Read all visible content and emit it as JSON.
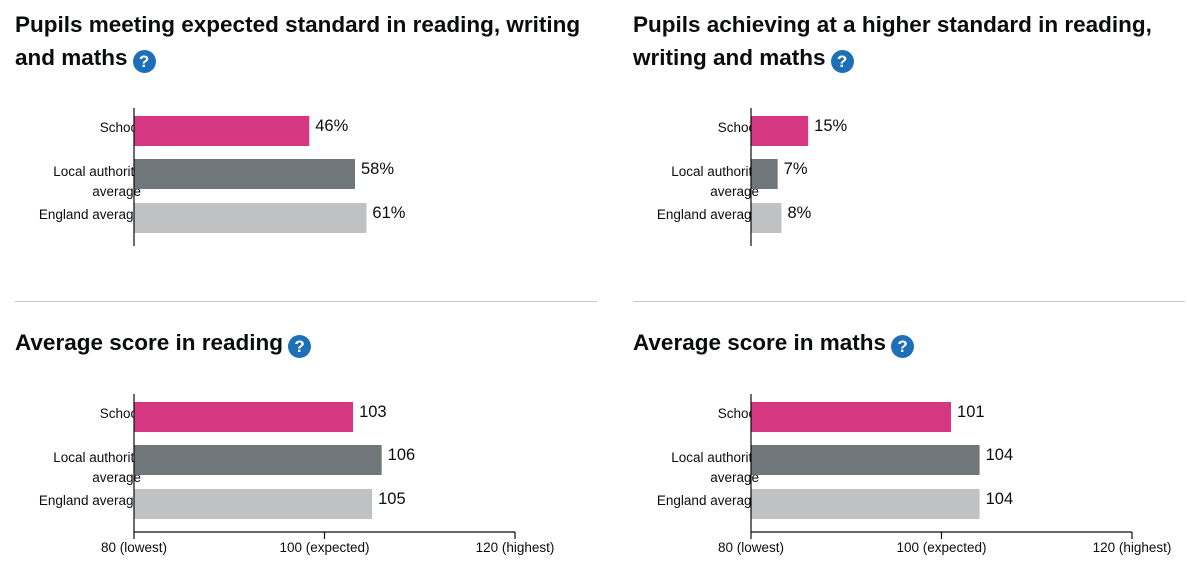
{
  "help_glyph": "?",
  "colors": {
    "school": "#d53880",
    "local_authority": "#6f777b",
    "england": "#bfc1c3",
    "help": "#1d70b8"
  },
  "chart_data": [
    {
      "type": "bar",
      "title": "Pupils meeting expected standard in reading, writing and maths",
      "categories": [
        "School",
        "Local authority average",
        "England average"
      ],
      "values": [
        46,
        58,
        61
      ],
      "value_labels": [
        "46%",
        "58%",
        "61%"
      ],
      "xlim": [
        0,
        100
      ],
      "xticks": [],
      "grid": false,
      "legend": "none"
    },
    {
      "type": "bar",
      "title": "Pupils achieving at a higher standard in reading, writing and maths",
      "categories": [
        "School",
        "Local authority average",
        "England average"
      ],
      "values": [
        15,
        7,
        8
      ],
      "value_labels": [
        "15%",
        "7%",
        "8%"
      ],
      "xlim": [
        0,
        100
      ],
      "xticks": [],
      "grid": false,
      "legend": "none"
    },
    {
      "type": "bar",
      "title": "Average score in reading",
      "categories": [
        "School",
        "Local authority average",
        "England average"
      ],
      "values": [
        103,
        106,
        105
      ],
      "value_labels": [
        "103",
        "106",
        "105"
      ],
      "xlim": [
        80,
        120
      ],
      "xticks": [
        {
          "value": 80,
          "label": "80 (lowest)"
        },
        {
          "value": 100,
          "label": "100 (expected)"
        },
        {
          "value": 120,
          "label": "120 (highest)"
        }
      ],
      "grid": false,
      "legend": "none"
    },
    {
      "type": "bar",
      "title": "Average score in maths",
      "categories": [
        "School",
        "Local authority average",
        "England average"
      ],
      "values": [
        101,
        104,
        104
      ],
      "value_labels": [
        "101",
        "104",
        "104"
      ],
      "xlim": [
        80,
        120
      ],
      "xticks": [
        {
          "value": 80,
          "label": "80 (lowest)"
        },
        {
          "value": 100,
          "label": "100 (expected)"
        },
        {
          "value": 120,
          "label": "120 (highest)"
        }
      ],
      "grid": false,
      "legend": "none"
    }
  ]
}
